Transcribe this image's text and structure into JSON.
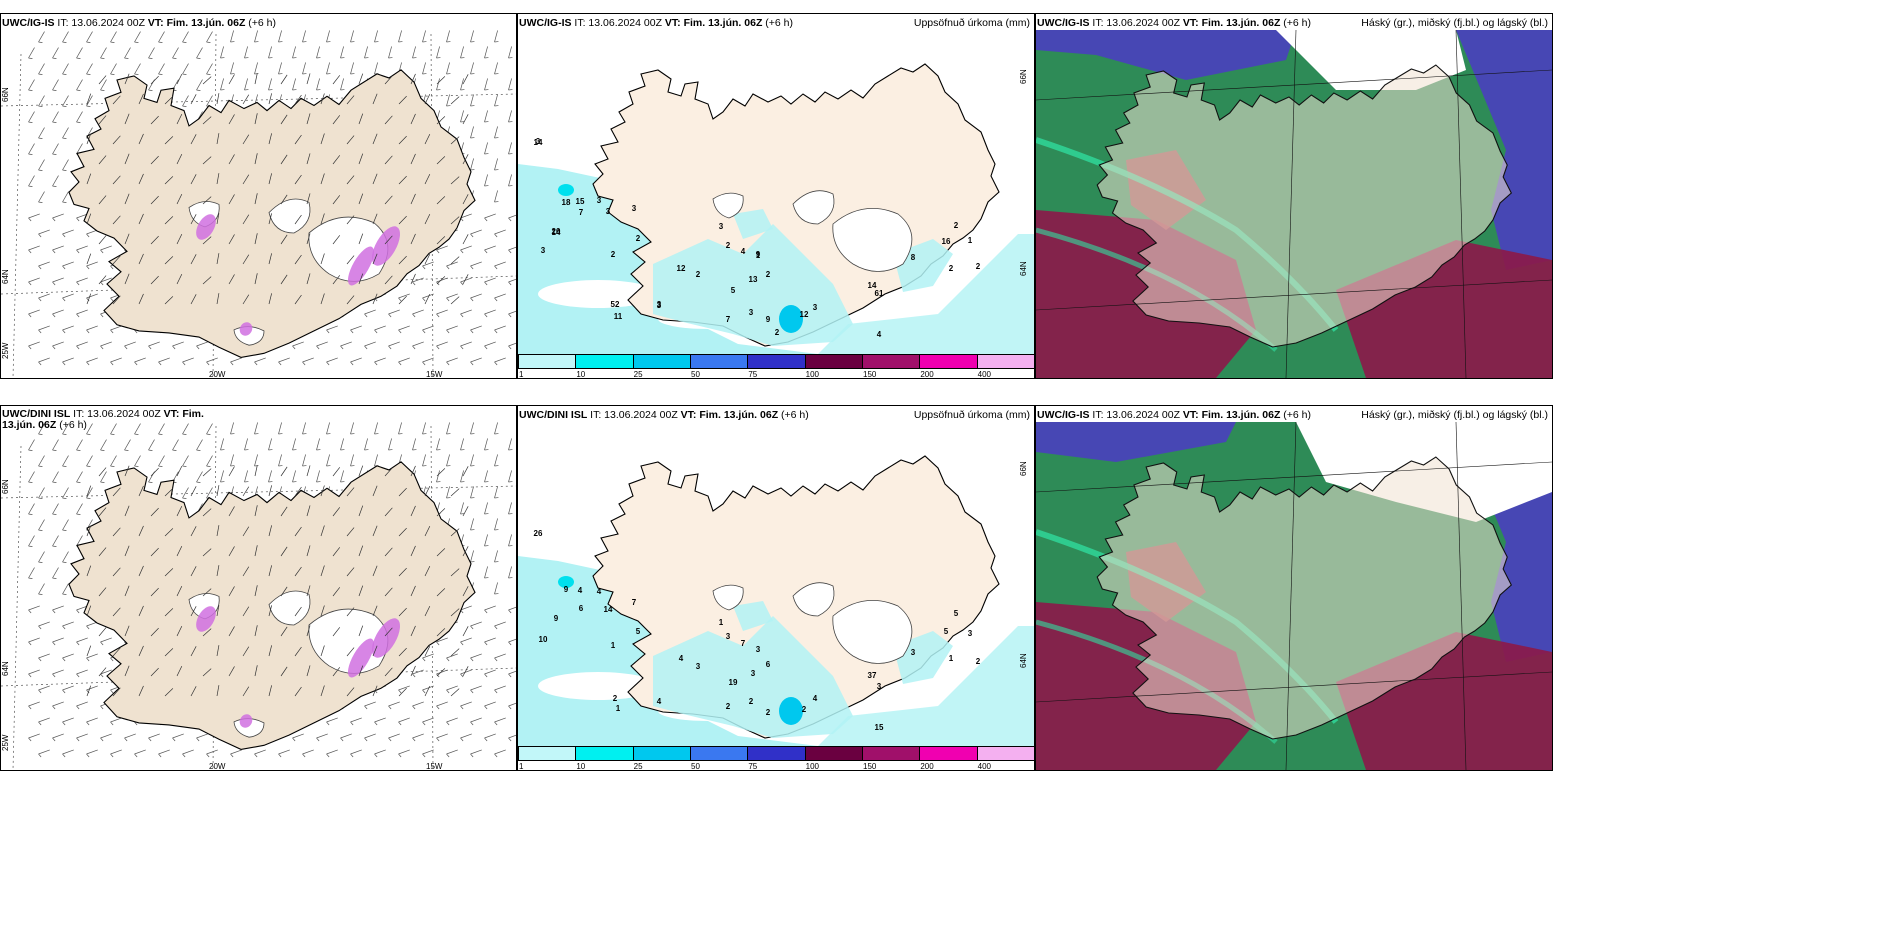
{
  "rows": [
    {
      "model": "UWC/IG-IS",
      "panels": [
        {
          "model": "UWC/IG-IS",
          "it": "IT: 13.06.2024 00Z",
          "vt": "VT: Fim. 13.jún. 06Z",
          "lead": "(+6 h)",
          "right": "",
          "grid_labels": [
            "66N",
            "64N",
            "25W",
            "20W",
            "15W"
          ]
        },
        {
          "model": "UWC/IG-IS",
          "it": "IT: 13.06.2024 00Z",
          "vt": "VT: Fim. 13.jún. 06Z",
          "lead": "(+6 h)",
          "right": "Uppsöfnuð úrkoma (mm)",
          "grid_labels": [
            "66N",
            "64N"
          ],
          "values": [
            "3",
            "20",
            "9",
            "3",
            "3",
            "61",
            "3",
            "3",
            "2",
            "2",
            "1",
            "18",
            "3",
            "12",
            "11",
            "4",
            "2",
            "7",
            "2",
            "5",
            "9",
            "8",
            "15",
            "2",
            "2",
            "7",
            "2",
            "2",
            "3",
            "4",
            "52",
            "12",
            "14",
            "3",
            "2",
            "13",
            "3",
            "16",
            "14",
            "14",
            "1",
            "3"
          ]
        },
        {
          "model": "UWC/IG-IS",
          "it": "IT: 13.06.2024 00Z",
          "vt": "VT: Fim. 13.jún. 06Z",
          "lead": "(+6 h)",
          "right": "Háský (gr.), miðský (fj.bl.) og lágský (bl.)"
        }
      ]
    },
    {
      "model": "UWC/DINI ISL",
      "panels": [
        {
          "model": "UWC/DINI ISL",
          "it": "IT: 13.06.2024 00Z",
          "vt": "VT: Fim. 13.jún. 06Z",
          "lead": "(+6 h)",
          "right": "",
          "grid_labels": [
            "66N",
            "64N",
            "25W",
            "20W",
            "15W"
          ]
        },
        {
          "model": "UWC/DINI ISL",
          "it": "IT: 13.06.2024 00Z",
          "vt": "VT: Fim. 13.jún. 06Z",
          "lead": "(+6 h)",
          "right": "Uppsöfnuð úrkoma (mm)",
          "grid_labels": [
            "66N",
            "64N"
          ],
          "values": [
            "26",
            "7",
            "2",
            "9",
            "3",
            "2",
            "4",
            "4",
            "4",
            "4",
            "3",
            "15",
            "7",
            "3",
            "5",
            "6",
            "6",
            "5",
            "14",
            "19",
            "3",
            "9",
            "2",
            "3",
            "10",
            "4",
            "37",
            "1",
            "1",
            "3",
            "5",
            "2",
            "2",
            "1",
            "2",
            "1",
            "3"
          ]
        },
        {
          "model": "UWC/IG-IS",
          "it": "IT: 13.06.2024 00Z",
          "vt": "VT: Fim. 13.jún. 06Z",
          "lead": "(+6 h)",
          "right": "Háský (gr.), miðský (fj.bl.) og lágský (bl.)"
        }
      ]
    }
  ],
  "precip_legend": {
    "ticks": [
      "1",
      "10",
      "25",
      "50",
      "75",
      "100",
      "150",
      "200",
      "400"
    ],
    "colors": [
      "#c2f7f9",
      "#00f0f0",
      "#00c8ee",
      "#3a78f0",
      "#3030c8",
      "#6a0040",
      "#a0106a",
      "#f000b0",
      "#f4b0f0"
    ]
  },
  "colors": {
    "land": "#efe2d0",
    "land_light": "#fbefe2",
    "sea_precip": "#b2f2f4",
    "cloud_high": "#2e8b57",
    "cloud_mid": "#8b1a4a",
    "cloud_low": "#4a3fbf"
  }
}
